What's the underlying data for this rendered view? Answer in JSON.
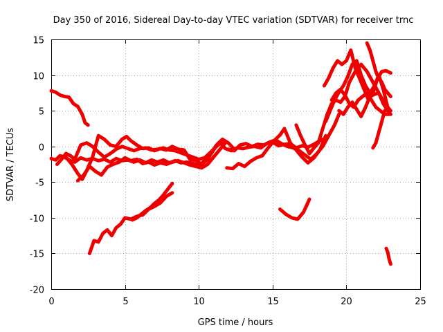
{
  "chart_data": {
    "type": "line",
    "title": "Day 350 of 2016, Sidereal Day-to-day VTEC variation (SDTVAR) for receiver trnc",
    "xlabel": "GPS time / hours",
    "ylabel": "SDTVAR / TECUs",
    "xlim": [
      0,
      25
    ],
    "ylim": [
      -20,
      15
    ],
    "xticks": [
      0,
      5,
      10,
      15,
      20,
      25
    ],
    "yticks": [
      -20,
      -15,
      -10,
      -5,
      0,
      5,
      10,
      15
    ],
    "grid": true,
    "color": "#ee0000",
    "series": [
      {
        "name": "s1",
        "x": [
          0,
          0.3,
          0.6,
          0.9,
          1.2,
          1.5,
          1.8,
          2.1,
          2.3,
          2.5
        ],
        "y": [
          7.8,
          7.6,
          7.2,
          7.0,
          6.9,
          6.0,
          5.6,
          4.5,
          3.3,
          3.0
        ]
      },
      {
        "name": "s2",
        "x": [
          0,
          0.3,
          0.6,
          0.9,
          1.3,
          1.6,
          2.0,
          2.4,
          2.8,
          3.2,
          3.6,
          4.0,
          4.4,
          4.8,
          5.2,
          5.6,
          6.0,
          6.4,
          6.8,
          7.2,
          7.6,
          8.0,
          8.4,
          8.8,
          9.2,
          9.6,
          10.0,
          10.4,
          10.8,
          11.2,
          11.6,
          12.0,
          12.4
        ],
        "y": [
          -1.7,
          -1.9,
          -1.3,
          -1.5,
          -2.0,
          -2.2,
          -1.6,
          -1.9,
          -1.7,
          -2.0,
          -1.8,
          -2.2,
          -1.7,
          -2.0,
          -1.9,
          -2.2,
          -1.9,
          -2.3,
          -1.9,
          -2.2,
          -1.9,
          -2.3,
          -2.0,
          -2.3,
          -2.2,
          -2.4,
          -2.7,
          -2.0,
          -1.0,
          0.2,
          1.0,
          0.5,
          -0.4
        ]
      },
      {
        "name": "s3",
        "x": [
          1.0,
          1.4,
          1.8,
          2.1,
          2.4,
          2.8,
          3.2,
          3.6,
          4.0,
          4.4,
          4.8,
          5.1,
          5.4,
          5.8,
          6.2,
          6.6,
          7.0,
          7.4,
          7.8,
          8.2,
          8.6,
          9.0,
          9.4,
          9.8,
          10.2,
          10.6,
          11.0,
          11.4,
          11.8,
          12.2,
          12.6,
          13.0,
          13.4,
          13.8,
          14.2,
          14.6,
          15.0,
          15.4,
          15.8,
          16.2,
          16.6,
          17.0,
          17.4,
          17.8,
          18.2,
          18.4
        ],
        "y": [
          -1.5,
          -2.5,
          -3.8,
          -4.6,
          -3.4,
          -1.5,
          1.5,
          1.0,
          0.2,
          0.0,
          1.0,
          1.4,
          0.8,
          0.2,
          -0.3,
          -0.2,
          -0.6,
          -0.3,
          -0.5,
          0.0,
          -0.4,
          -0.5,
          -1.8,
          -2.0,
          -2.5,
          -1.8,
          -0.5,
          0.6,
          -0.3,
          -0.6,
          -0.2,
          -0.3,
          -0.1,
          0.0,
          -0.2,
          0.4,
          0.6,
          0.1,
          0.3,
          0.4,
          -0.2,
          0.1,
          -0.1,
          0.3,
          0.8,
          1.0
        ]
      },
      {
        "name": "s4",
        "x": [
          0.4,
          0.7,
          1.0,
          1.3,
          1.6,
          2.0,
          2.4,
          2.8,
          3.2,
          3.6,
          4.0,
          4.4,
          4.8,
          5.2,
          5.6,
          6.0,
          6.4,
          6.8,
          7.2,
          7.6,
          8.0,
          8.4,
          8.8,
          9.2,
          9.6,
          10.0,
          10.4,
          10.8,
          11.2,
          11.6
        ],
        "y": [
          -2.5,
          -1.8,
          -1.0,
          -1.3,
          -1.8,
          0.2,
          0.5,
          0.0,
          -0.8,
          -1.5,
          -1.0,
          -0.4,
          0.0,
          -0.3,
          -0.6,
          -0.3,
          -0.2,
          -0.5,
          -0.4,
          -0.2,
          -0.5,
          -0.6,
          -0.9,
          -1.2,
          -1.5,
          -1.8,
          -1.6,
          -0.8,
          0.0,
          0.7
        ]
      },
      {
        "name": "s5",
        "x": [
          1.8,
          2.2,
          2.6,
          3.0,
          3.4,
          3.8,
          4.2,
          4.6,
          5.0,
          5.4,
          5.8,
          6.2,
          6.6,
          7.0,
          7.4,
          7.8,
          8.2,
          8.6,
          9.0,
          9.4,
          9.8,
          10.2,
          10.6,
          11.0,
          11.4,
          11.8
        ],
        "y": [
          -4.8,
          -4.0,
          -2.8,
          -3.5,
          -4.0,
          -2.9,
          -2.5,
          -2.2,
          -1.6,
          -2.0,
          -1.8,
          -2.4,
          -2.2,
          -2.6,
          -2.3,
          -2.5,
          -2.2,
          -2.0,
          -2.3,
          -2.6,
          -2.8,
          -3.0,
          -2.5,
          -1.5,
          -0.5,
          0.5
        ]
      },
      {
        "name": "s6",
        "x": [
          2.6,
          2.9,
          3.2,
          3.5,
          3.8,
          4.1,
          4.4,
          4.7,
          5.0,
          5.4,
          5.8,
          6.2,
          6.6,
          7.0,
          7.4,
          7.8,
          8.2
        ],
        "y": [
          -15.0,
          -13.2,
          -13.4,
          -12.2,
          -11.7,
          -12.5,
          -11.4,
          -10.9,
          -10.0,
          -10.2,
          -9.8,
          -9.6,
          -8.8,
          -8.4,
          -7.9,
          -7.0,
          -6.5
        ]
      },
      {
        "name": "s7",
        "x": [
          5.5,
          5.8,
          6.1,
          6.4,
          6.7,
          7.0,
          7.3,
          7.6,
          7.9,
          8.2
        ],
        "y": [
          -10.3,
          -10.0,
          -9.5,
          -9.0,
          -8.6,
          -8.0,
          -7.5,
          -6.8,
          -6.0,
          -5.2
        ]
      },
      {
        "name": "s8",
        "x": [
          11.9,
          12.3,
          12.7,
          13.1,
          13.5,
          13.9,
          14.3,
          14.7,
          15.1,
          15.5,
          15.8,
          16.2,
          16.6,
          17.0,
          17.4,
          17.8,
          18.2,
          18.6
        ],
        "y": [
          -3.0,
          -3.1,
          -2.4,
          -2.8,
          -2.1,
          -1.6,
          -1.3,
          -0.2,
          0.8,
          1.6,
          2.5,
          0.5,
          -0.5,
          -1.5,
          -2.3,
          -1.6,
          -0.5,
          1.5
        ]
      },
      {
        "name": "s9",
        "x": [
          12.0,
          12.4,
          12.8,
          13.2,
          13.6,
          14.0,
          14.4,
          14.8,
          15.2,
          15.6,
          16.0,
          16.4,
          16.8,
          17.2,
          17.6,
          18.0,
          18.4,
          18.8,
          19.2,
          19.5
        ],
        "y": [
          -0.4,
          -0.6,
          0.2,
          0.4,
          0.0,
          0.3,
          0.2,
          0.6,
          0.9,
          0.4,
          0.0,
          -0.2,
          -0.6,
          -1.2,
          -1.8,
          -1.0,
          0.0,
          1.5,
          3.0,
          4.5
        ]
      },
      {
        "name": "s10",
        "x": [
          15.5,
          15.9,
          16.3,
          16.7,
          17.1,
          17.5
        ],
        "y": [
          -8.8,
          -9.5,
          -10.0,
          -10.2,
          -9.2,
          -7.4
        ]
      },
      {
        "name": "s11",
        "x": [
          16.6,
          16.9,
          17.2,
          17.5,
          17.8,
          18.1,
          18.4,
          18.7,
          19.0,
          19.3,
          19.6,
          19.9,
          20.2,
          20.6,
          21.0,
          21.4,
          21.8,
          22.2,
          22.6,
          23.0
        ],
        "y": [
          3.0,
          1.5,
          0.2,
          -1.0,
          -0.2,
          0.5,
          2.5,
          4.5,
          6.0,
          6.5,
          6.2,
          7.0,
          9.0,
          10.5,
          11.5,
          10.5,
          9.0,
          7.5,
          6.0,
          5.0
        ]
      },
      {
        "name": "s12",
        "x": [
          18.5,
          18.8,
          19.1,
          19.4,
          19.7,
          20.0,
          20.3,
          20.6,
          20.9,
          21.2,
          21.5,
          21.8,
          22.1,
          22.4,
          22.7,
          23.0
        ],
        "y": [
          8.5,
          9.6,
          11.0,
          12.0,
          11.5,
          12.0,
          13.5,
          11.0,
          9.5,
          8.0,
          6.5,
          7.5,
          9.5,
          10.5,
          10.6,
          10.3
        ]
      },
      {
        "name": "s13",
        "x": [
          18.6,
          18.9,
          19.2,
          19.5,
          19.8,
          20.1,
          20.4,
          20.7,
          21.0,
          21.3,
          21.6,
          21.9,
          22.2,
          22.5,
          22.8
        ],
        "y": [
          3.5,
          5.0,
          6.5,
          7.6,
          8.5,
          9.8,
          11.5,
          12.0,
          10.0,
          8.5,
          7.5,
          8.5,
          10.0,
          8.0,
          5.5
        ]
      },
      {
        "name": "s14",
        "x": [
          19.0,
          19.3,
          19.6,
          19.9,
          20.2,
          20.5,
          20.8,
          21.1,
          21.4,
          21.7,
          22.0,
          22.3,
          22.6,
          22.9
        ],
        "y": [
          6.5,
          7.5,
          8.0,
          7.2,
          6.0,
          5.5,
          6.5,
          7.0,
          7.5,
          6.5,
          5.5,
          5.0,
          4.5,
          4.5
        ]
      },
      {
        "name": "s15",
        "x": [
          19.5,
          19.8,
          20.1,
          20.4,
          20.7,
          21.0,
          21.3,
          21.6,
          21.9,
          22.2,
          22.5,
          22.8,
          23.0
        ],
        "y": [
          5.0,
          4.5,
          5.5,
          6.2,
          5.2,
          4.2,
          5.5,
          7.0,
          7.3,
          7.5,
          6.0,
          5.0,
          4.5
        ]
      },
      {
        "name": "s16",
        "x": [
          21.4,
          21.6,
          21.8,
          22.0,
          22.2,
          22.4,
          22.6,
          22.8,
          23.0
        ],
        "y": [
          14.5,
          13.5,
          12.0,
          10.5,
          9.5,
          9.0,
          8.0,
          7.5,
          7.0
        ]
      },
      {
        "name": "s17",
        "x": [
          21.8,
          22.0,
          22.2,
          22.4,
          22.6
        ],
        "y": [
          -0.2,
          0.5,
          2.0,
          3.5,
          5.0
        ]
      },
      {
        "name": "s18",
        "x": [
          22.7,
          22.8,
          22.9,
          23.0
        ],
        "y": [
          -14.3,
          -14.8,
          -15.8,
          -16.5
        ]
      }
    ]
  }
}
